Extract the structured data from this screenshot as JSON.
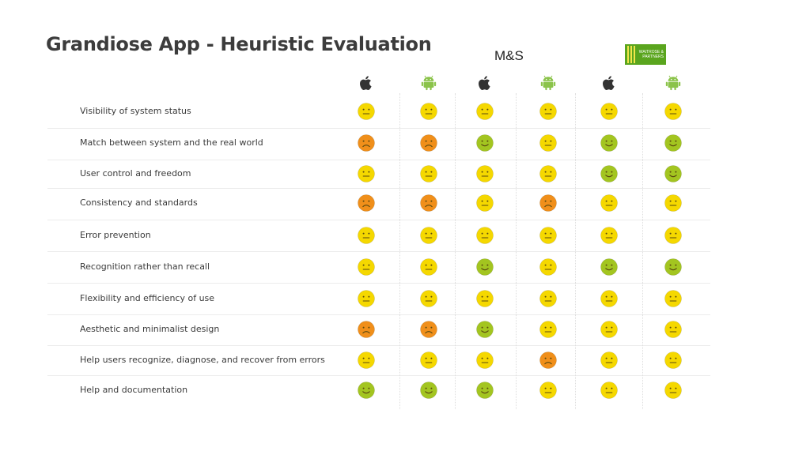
{
  "title": "Grandiose App - Heuristic Evaluation",
  "brands": {
    "ms_label": "M&S",
    "waitrose_label": "WAITROSE & PARTNERS"
  },
  "platforms": [
    "ios",
    "android",
    "ios",
    "android",
    "ios",
    "android"
  ],
  "colors": {
    "happy": "#a3c520",
    "neutral": "#f5d800",
    "sad": "#f08f1a",
    "apple": "#333333",
    "android": "#8bc34a"
  },
  "heuristics": [
    {
      "label": "Visibility of system status",
      "ratings": [
        "neutral",
        "neutral",
        "neutral",
        "neutral",
        "neutral",
        "neutral"
      ]
    },
    {
      "label": "Match between system and the real world",
      "ratings": [
        "sad",
        "sad",
        "happy",
        "neutral",
        "happy",
        "happy"
      ]
    },
    {
      "label": "User control and freedom",
      "ratings": [
        "neutral",
        "neutral",
        "neutral",
        "neutral",
        "happy",
        "happy"
      ]
    },
    {
      "label": "Consistency and standards",
      "ratings": [
        "sad",
        "sad",
        "neutral",
        "sad",
        "neutral",
        "neutral"
      ]
    },
    {
      "label": "Error prevention",
      "ratings": [
        "neutral",
        "neutral",
        "neutral",
        "neutral",
        "neutral",
        "neutral"
      ]
    },
    {
      "label": "Recognition rather than recall",
      "ratings": [
        "neutral",
        "neutral",
        "happy",
        "neutral",
        "happy",
        "happy"
      ]
    },
    {
      "label": "Flexibility and efficiency of use",
      "ratings": [
        "neutral",
        "neutral",
        "neutral",
        "neutral",
        "neutral",
        "neutral"
      ]
    },
    {
      "label": "Aesthetic and minimalist design",
      "ratings": [
        "sad",
        "sad",
        "happy",
        "neutral",
        "neutral",
        "neutral"
      ]
    },
    {
      "label": "Help users recognize, diagnose, and recover from errors",
      "ratings": [
        "neutral",
        "neutral",
        "neutral",
        "sad",
        "neutral",
        "neutral"
      ]
    },
    {
      "label": "Help and documentation",
      "ratings": [
        "happy",
        "happy",
        "happy",
        "neutral",
        "neutral",
        "neutral"
      ]
    }
  ]
}
